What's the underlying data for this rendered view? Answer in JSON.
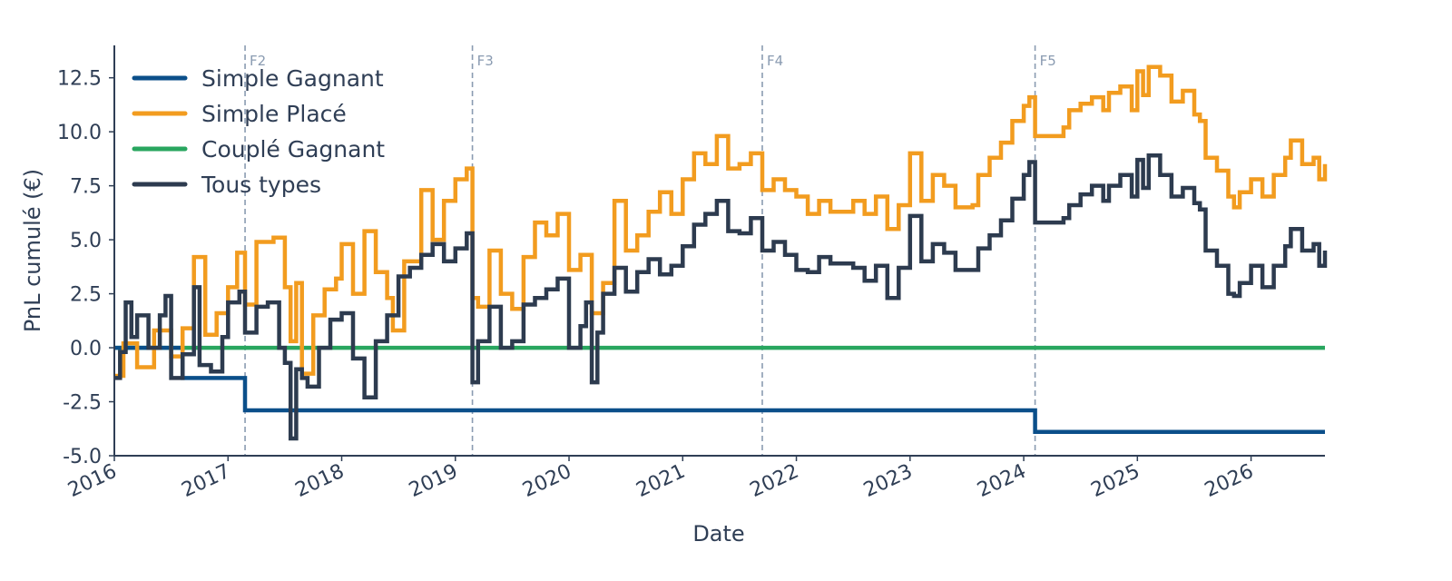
{
  "chart_data": {
    "type": "line",
    "title": "",
    "xlabel": "Date",
    "ylabel": "PnL cumulé (€)",
    "xlim": [
      2016.0,
      2026.65
    ],
    "ylim": [
      -5.0,
      14.0
    ],
    "x_ticks": [
      "2016",
      "2017",
      "2018",
      "2019",
      "2020",
      "2021",
      "2022",
      "2023",
      "2024",
      "2025",
      "2026"
    ],
    "y_ticks": [
      "-5.0",
      "-2.5",
      "0.0",
      "2.5",
      "5.0",
      "7.5",
      "10.0",
      "12.5"
    ],
    "grid": false,
    "legend_position": "top-left",
    "vertical_markers": [
      {
        "label": "F2",
        "x": 2017.15
      },
      {
        "label": "F3",
        "x": 2019.15
      },
      {
        "label": "F4",
        "x": 2021.7
      },
      {
        "label": "F5",
        "x": 2024.1
      }
    ],
    "series": [
      {
        "name": "Simple Gagnant",
        "color": "#0b4f8a",
        "step": true,
        "points": [
          [
            2016.0,
            0.0
          ],
          [
            2016.6,
            -1.4
          ],
          [
            2017.15,
            -2.9
          ],
          [
            2024.1,
            -3.9
          ],
          [
            2026.65,
            -3.9
          ]
        ]
      },
      {
        "name": "Simple Placé",
        "color": "#f29c1f",
        "step": true,
        "points": [
          [
            2016.0,
            -1.3
          ],
          [
            2016.08,
            0.2
          ],
          [
            2016.2,
            -0.9
          ],
          [
            2016.35,
            0.8
          ],
          [
            2016.5,
            -0.4
          ],
          [
            2016.6,
            0.9
          ],
          [
            2016.7,
            4.2
          ],
          [
            2016.8,
            0.6
          ],
          [
            2016.9,
            1.6
          ],
          [
            2017.0,
            2.8
          ],
          [
            2017.08,
            4.4
          ],
          [
            2017.15,
            2.0
          ],
          [
            2017.25,
            4.9
          ],
          [
            2017.4,
            5.1
          ],
          [
            2017.5,
            2.8
          ],
          [
            2017.55,
            0.3
          ],
          [
            2017.6,
            3.0
          ],
          [
            2017.65,
            -1.2
          ],
          [
            2017.75,
            1.5
          ],
          [
            2017.85,
            2.7
          ],
          [
            2017.95,
            3.2
          ],
          [
            2018.0,
            4.8
          ],
          [
            2018.1,
            2.5
          ],
          [
            2018.2,
            5.4
          ],
          [
            2018.3,
            3.5
          ],
          [
            2018.4,
            2.3
          ],
          [
            2018.45,
            0.8
          ],
          [
            2018.55,
            4.0
          ],
          [
            2018.7,
            7.3
          ],
          [
            2018.8,
            5.0
          ],
          [
            2018.9,
            6.8
          ],
          [
            2019.0,
            7.8
          ],
          [
            2019.1,
            8.3
          ],
          [
            2019.15,
            2.3
          ],
          [
            2019.2,
            1.9
          ],
          [
            2019.3,
            4.5
          ],
          [
            2019.4,
            2.5
          ],
          [
            2019.5,
            1.8
          ],
          [
            2019.6,
            4.2
          ],
          [
            2019.7,
            5.8
          ],
          [
            2019.8,
            5.2
          ],
          [
            2019.9,
            6.2
          ],
          [
            2020.0,
            3.6
          ],
          [
            2020.1,
            4.3
          ],
          [
            2020.2,
            1.6
          ],
          [
            2020.3,
            3.0
          ],
          [
            2020.4,
            6.8
          ],
          [
            2020.5,
            4.5
          ],
          [
            2020.6,
            5.2
          ],
          [
            2020.7,
            6.3
          ],
          [
            2020.8,
            7.2
          ],
          [
            2020.9,
            6.2
          ],
          [
            2021.0,
            7.8
          ],
          [
            2021.1,
            9.0
          ],
          [
            2021.2,
            8.5
          ],
          [
            2021.3,
            9.8
          ],
          [
            2021.4,
            8.3
          ],
          [
            2021.5,
            8.5
          ],
          [
            2021.6,
            9.0
          ],
          [
            2021.7,
            7.3
          ],
          [
            2021.8,
            7.8
          ],
          [
            2021.9,
            7.3
          ],
          [
            2022.0,
            7.0
          ],
          [
            2022.1,
            6.2
          ],
          [
            2022.2,
            6.8
          ],
          [
            2022.3,
            6.3
          ],
          [
            2022.5,
            6.8
          ],
          [
            2022.6,
            6.2
          ],
          [
            2022.7,
            7.0
          ],
          [
            2022.8,
            5.5
          ],
          [
            2022.9,
            6.6
          ],
          [
            2023.0,
            9.0
          ],
          [
            2023.1,
            6.8
          ],
          [
            2023.2,
            8.0
          ],
          [
            2023.3,
            7.5
          ],
          [
            2023.4,
            6.5
          ],
          [
            2023.55,
            6.6
          ],
          [
            2023.6,
            8.0
          ],
          [
            2023.7,
            8.8
          ],
          [
            2023.8,
            9.5
          ],
          [
            2023.9,
            10.5
          ],
          [
            2024.0,
            11.2
          ],
          [
            2024.05,
            11.6
          ],
          [
            2024.1,
            9.8
          ],
          [
            2024.35,
            10.2
          ],
          [
            2024.4,
            11.0
          ],
          [
            2024.5,
            11.3
          ],
          [
            2024.6,
            11.6
          ],
          [
            2024.7,
            11.0
          ],
          [
            2024.75,
            11.8
          ],
          [
            2024.85,
            12.1
          ],
          [
            2024.95,
            11.0
          ],
          [
            2025.0,
            12.8
          ],
          [
            2025.05,
            11.7
          ],
          [
            2025.1,
            13.0
          ],
          [
            2025.2,
            12.6
          ],
          [
            2025.3,
            11.4
          ],
          [
            2025.4,
            11.9
          ],
          [
            2025.5,
            10.8
          ],
          [
            2025.55,
            10.5
          ],
          [
            2025.6,
            8.8
          ],
          [
            2025.7,
            8.2
          ],
          [
            2025.8,
            7.0
          ],
          [
            2025.85,
            6.5
          ],
          [
            2025.9,
            7.2
          ],
          [
            2026.0,
            7.8
          ],
          [
            2026.1,
            7.0
          ],
          [
            2026.2,
            8.0
          ],
          [
            2026.3,
            8.8
          ],
          [
            2026.35,
            9.6
          ],
          [
            2026.45,
            8.5
          ],
          [
            2026.55,
            8.8
          ],
          [
            2026.6,
            7.8
          ],
          [
            2026.65,
            8.5
          ]
        ]
      },
      {
        "name": "Couplé Gagnant",
        "color": "#29a65f",
        "step": false,
        "points": [
          [
            2016.0,
            0.0
          ],
          [
            2026.65,
            0.0
          ]
        ]
      },
      {
        "name": "Tous types",
        "color": "#2d3b4f",
        "step": true,
        "points": [
          [
            2016.0,
            -1.4
          ],
          [
            2016.05,
            -0.2
          ],
          [
            2016.1,
            2.1
          ],
          [
            2016.15,
            0.5
          ],
          [
            2016.2,
            1.5
          ],
          [
            2016.3,
            0.0
          ],
          [
            2016.4,
            1.5
          ],
          [
            2016.45,
            2.4
          ],
          [
            2016.5,
            -1.4
          ],
          [
            2016.6,
            -0.3
          ],
          [
            2016.7,
            2.8
          ],
          [
            2016.75,
            -0.8
          ],
          [
            2016.85,
            -1.1
          ],
          [
            2016.95,
            0.5
          ],
          [
            2017.0,
            2.1
          ],
          [
            2017.1,
            2.6
          ],
          [
            2017.15,
            0.7
          ],
          [
            2017.25,
            1.9
          ],
          [
            2017.35,
            2.1
          ],
          [
            2017.45,
            0.0
          ],
          [
            2017.5,
            -0.7
          ],
          [
            2017.55,
            -4.2
          ],
          [
            2017.6,
            -1.0
          ],
          [
            2017.65,
            -1.4
          ],
          [
            2017.7,
            -1.8
          ],
          [
            2017.8,
            0.0
          ],
          [
            2017.9,
            1.3
          ],
          [
            2018.0,
            1.6
          ],
          [
            2018.1,
            -0.5
          ],
          [
            2018.2,
            -2.3
          ],
          [
            2018.3,
            0.3
          ],
          [
            2018.4,
            1.5
          ],
          [
            2018.5,
            3.3
          ],
          [
            2018.6,
            3.7
          ],
          [
            2018.7,
            4.3
          ],
          [
            2018.8,
            4.8
          ],
          [
            2018.9,
            4.0
          ],
          [
            2019.0,
            4.6
          ],
          [
            2019.1,
            5.3
          ],
          [
            2019.15,
            -1.6
          ],
          [
            2019.2,
            0.3
          ],
          [
            2019.3,
            1.9
          ],
          [
            2019.4,
            0.0
          ],
          [
            2019.5,
            0.3
          ],
          [
            2019.6,
            2.0
          ],
          [
            2019.7,
            2.3
          ],
          [
            2019.8,
            2.7
          ],
          [
            2019.9,
            3.2
          ],
          [
            2020.0,
            0.0
          ],
          [
            2020.1,
            1.0
          ],
          [
            2020.15,
            2.1
          ],
          [
            2020.2,
            -1.6
          ],
          [
            2020.25,
            0.7
          ],
          [
            2020.3,
            2.5
          ],
          [
            2020.4,
            3.7
          ],
          [
            2020.5,
            2.6
          ],
          [
            2020.6,
            3.5
          ],
          [
            2020.7,
            4.1
          ],
          [
            2020.8,
            3.4
          ],
          [
            2020.9,
            3.8
          ],
          [
            2021.0,
            4.7
          ],
          [
            2021.1,
            5.7
          ],
          [
            2021.2,
            6.2
          ],
          [
            2021.3,
            6.8
          ],
          [
            2021.4,
            5.4
          ],
          [
            2021.5,
            5.3
          ],
          [
            2021.6,
            6.0
          ],
          [
            2021.7,
            4.5
          ],
          [
            2021.8,
            4.9
          ],
          [
            2021.9,
            4.3
          ],
          [
            2022.0,
            3.6
          ],
          [
            2022.1,
            3.5
          ],
          [
            2022.2,
            4.2
          ],
          [
            2022.3,
            3.9
          ],
          [
            2022.5,
            3.7
          ],
          [
            2022.6,
            3.1
          ],
          [
            2022.7,
            3.8
          ],
          [
            2022.8,
            2.3
          ],
          [
            2022.9,
            3.7
          ],
          [
            2023.0,
            6.1
          ],
          [
            2023.1,
            4.0
          ],
          [
            2023.2,
            4.8
          ],
          [
            2023.3,
            4.4
          ],
          [
            2023.4,
            3.6
          ],
          [
            2023.55,
            3.6
          ],
          [
            2023.6,
            4.6
          ],
          [
            2023.7,
            5.2
          ],
          [
            2023.8,
            5.9
          ],
          [
            2023.9,
            6.9
          ],
          [
            2024.0,
            8.0
          ],
          [
            2024.05,
            8.6
          ],
          [
            2024.1,
            5.8
          ],
          [
            2024.35,
            6.0
          ],
          [
            2024.4,
            6.6
          ],
          [
            2024.5,
            7.1
          ],
          [
            2024.6,
            7.5
          ],
          [
            2024.7,
            6.8
          ],
          [
            2024.75,
            7.5
          ],
          [
            2024.85,
            8.0
          ],
          [
            2024.95,
            7.0
          ],
          [
            2025.0,
            8.7
          ],
          [
            2025.05,
            7.4
          ],
          [
            2025.1,
            8.9
          ],
          [
            2025.2,
            8.0
          ],
          [
            2025.3,
            7.0
          ],
          [
            2025.4,
            7.4
          ],
          [
            2025.5,
            6.7
          ],
          [
            2025.55,
            6.4
          ],
          [
            2025.6,
            4.5
          ],
          [
            2025.7,
            3.8
          ],
          [
            2025.8,
            2.5
          ],
          [
            2025.85,
            2.4
          ],
          [
            2025.9,
            3.0
          ],
          [
            2026.0,
            3.8
          ],
          [
            2026.1,
            2.8
          ],
          [
            2026.2,
            3.8
          ],
          [
            2026.3,
            4.7
          ],
          [
            2026.35,
            5.5
          ],
          [
            2026.45,
            4.5
          ],
          [
            2026.55,
            4.8
          ],
          [
            2026.6,
            3.8
          ],
          [
            2026.65,
            4.5
          ]
        ]
      }
    ]
  }
}
